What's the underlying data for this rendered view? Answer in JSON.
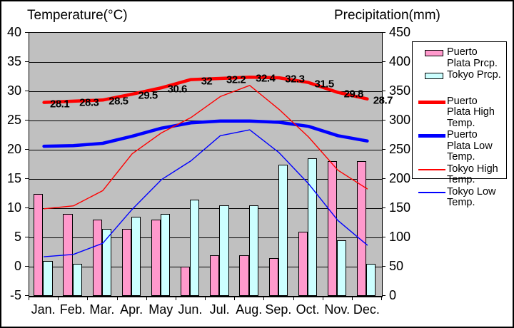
{
  "titles": {
    "left": "Temperature(°C)",
    "right": "Precipitation(mm)"
  },
  "axes": {
    "temp": {
      "label": "Temperature(°C)",
      "min": -5,
      "max": 40,
      "ticks": [
        40,
        35,
        30,
        25,
        20,
        15,
        10,
        5,
        0,
        -5
      ]
    },
    "precip": {
      "label": "Precipitation(mm)",
      "min": 0,
      "max": 450,
      "ticks": [
        450,
        400,
        350,
        300,
        250,
        200,
        150,
        100,
        50,
        0
      ]
    }
  },
  "chart_data": {
    "type": "bar+line combo",
    "categories": [
      "Jan.",
      "Feb.",
      "Mar.",
      "Apr.",
      "May",
      "Jun.",
      "Jul.",
      "Aug.",
      "Sep.",
      "Oct.",
      "Nov.",
      "Dec."
    ],
    "bar_series": [
      {
        "name": "Puerto Plata Prcp.",
        "axis": "precip",
        "color": "#FF99CC",
        "values": [
          175,
          140,
          130,
          115,
          130,
          50,
          70,
          70,
          65,
          110,
          230,
          230
        ]
      },
      {
        "name": "Tokyo Prcp.",
        "axis": "precip",
        "color": "#CCFFFF",
        "values": [
          60,
          55,
          115,
          135,
          140,
          165,
          155,
          155,
          225,
          235,
          95,
          55
        ]
      }
    ],
    "line_series": [
      {
        "name": "Puerto Plata High Temp.",
        "axis": "temp",
        "color": "#FF0000",
        "width": 4.5,
        "values": [
          28.1,
          28.3,
          28.5,
          29.5,
          30.6,
          32,
          32.2,
          32.4,
          32.3,
          31.5,
          29.8,
          28.7
        ]
      },
      {
        "name": "Puerto Plata Low Temp.",
        "axis": "temp",
        "color": "#0000FF",
        "width": 4.5,
        "values": [
          20.6,
          20.7,
          21.1,
          22.3,
          23.7,
          24.6,
          24.9,
          24.9,
          24.7,
          24.0,
          22.4,
          21.5
        ]
      },
      {
        "name": "Tokyo High Temp.",
        "axis": "temp",
        "color": "#FF0000",
        "width": 1.4,
        "values": [
          9.9,
          10.4,
          13.0,
          19.3,
          22.9,
          25.5,
          29.1,
          31.0,
          26.9,
          22.2,
          16.5,
          13.3
        ]
      },
      {
        "name": "Tokyo Low Temp.",
        "axis": "temp",
        "color": "#0000FF",
        "width": 1.4,
        "values": [
          1.7,
          2.1,
          4.0,
          9.8,
          14.9,
          18.1,
          22.4,
          23.4,
          19.5,
          14.2,
          7.9,
          3.7
        ]
      }
    ],
    "point_labels": [
      "28.1",
      "28.3",
      "28.5",
      "29.5",
      "30.6",
      "32",
      "32.2",
      "32.4",
      "32.3",
      "31.5",
      "29.8",
      "28.7"
    ],
    "grid": "horizontal",
    "plot_background": "#C0C0C0",
    "legend_position": "right"
  },
  "legend": {
    "items": [
      {
        "label": "Puerto Plata Prcp.",
        "type": "bar",
        "color": "#FF99CC"
      },
      {
        "label": "Tokyo Prcp.",
        "type": "bar",
        "color": "#CCFFFF"
      },
      {
        "label": "Puerto Plata High Temp.",
        "type": "line-thick",
        "color": "#FF0000"
      },
      {
        "label": "Puerto Plata Low Temp.",
        "type": "line-thick",
        "color": "#0000FF"
      },
      {
        "label": "Tokyo High Temp.",
        "type": "line-thin",
        "color": "#FF0000"
      },
      {
        "label": "Tokyo Low Temp.",
        "type": "line-thin",
        "color": "#0000FF"
      }
    ]
  }
}
